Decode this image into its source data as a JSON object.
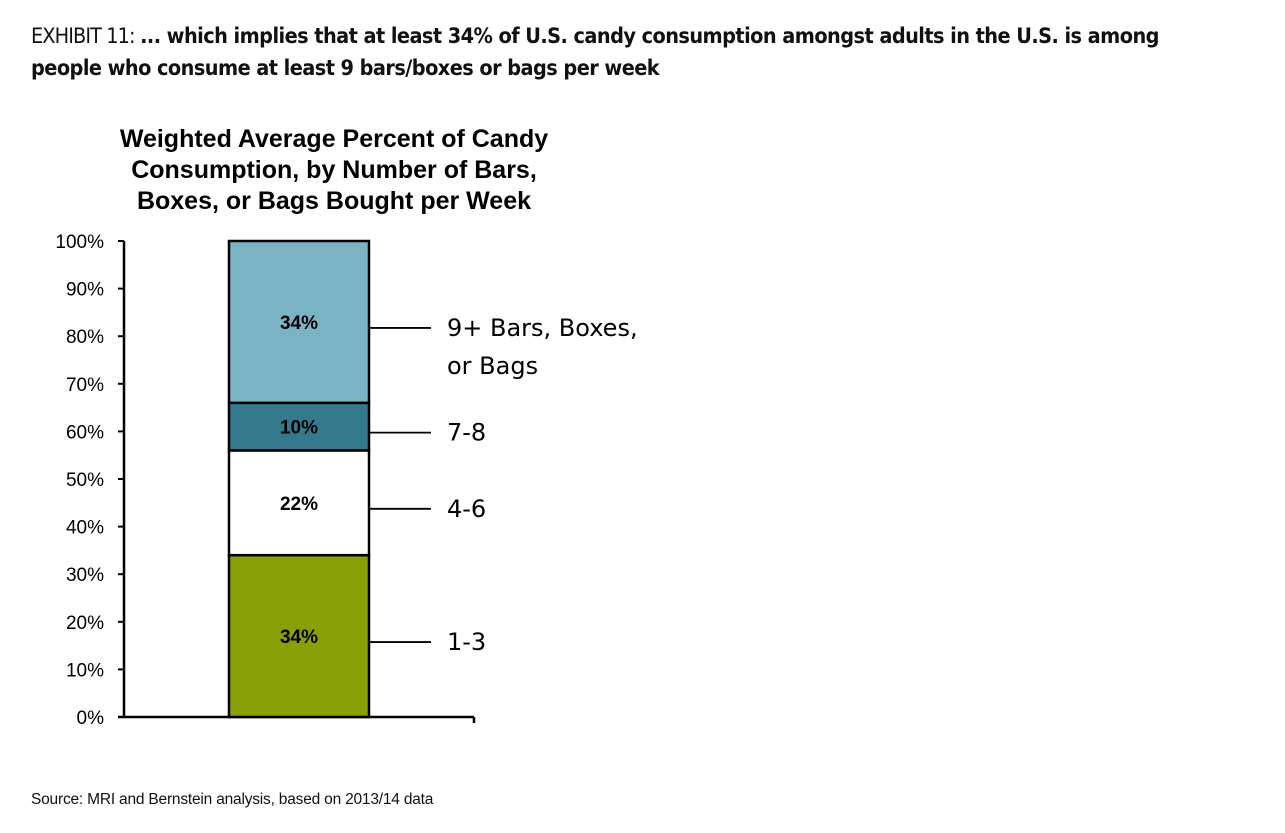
{
  "exhibit": {
    "label": "EXHIBIT 11:",
    "text": "... which implies that at least 34% of U.S. candy consumption amongst adults in the U.S. is among people who consume at least 9 bars/boxes or bags per week"
  },
  "source": "Source: MRI and Bernstein analysis, based on 2013/14 data",
  "chart_data": {
    "type": "bar",
    "stacked": true,
    "title": "Weighted Average Percent of Candy Consumption, by Number of Bars, Boxes, or Bags Bought per Week",
    "title_lines": [
      "Weighted Average Percent of Candy",
      "Consumption, by Number of Bars,",
      "Boxes, or Bags Bought per Week"
    ],
    "xlabel": "",
    "ylabel": "",
    "categories": [
      ""
    ],
    "ylim": [
      0,
      100
    ],
    "yticks": [
      0,
      10,
      20,
      30,
      40,
      50,
      60,
      70,
      80,
      90,
      100
    ],
    "ytick_labels": [
      "0%",
      "10%",
      "20%",
      "30%",
      "40%",
      "50%",
      "60%",
      "70%",
      "80%",
      "90%",
      "100%"
    ],
    "grid": false,
    "legend": "right, leader lines",
    "series": [
      {
        "name": "1-3",
        "legend_lines": [
          "1-3"
        ],
        "values": [
          34
        ],
        "label": "34%",
        "color": "#8a9e05"
      },
      {
        "name": "4-6",
        "legend_lines": [
          "4-6"
        ],
        "values": [
          22
        ],
        "label": "22%",
        "color": "#ffffff"
      },
      {
        "name": "7-8",
        "legend_lines": [
          "7-8"
        ],
        "values": [
          10
        ],
        "label": "10%",
        "color": "#347a8c"
      },
      {
        "name": "9+ Bars, Boxes, or Bags",
        "legend_lines": [
          "9+ Bars, Boxes,",
          "or Bags"
        ],
        "values": [
          34
        ],
        "label": "34%",
        "color": "#7ab3c4"
      }
    ]
  }
}
